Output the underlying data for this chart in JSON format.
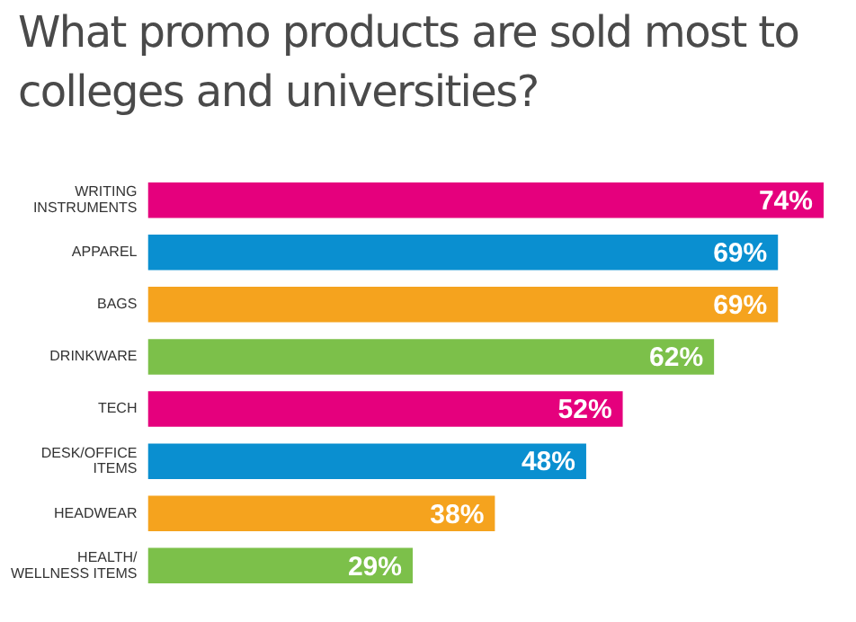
{
  "chart_data": {
    "type": "bar",
    "orientation": "horizontal",
    "title": "What promo products are sold most to colleges and universities?",
    "categories": [
      "WRITING\nINSTRUMENTS",
      "APPAREL",
      "BAGS",
      "DRINKWARE",
      "TECH",
      "DESK/OFFICE\nITEMS",
      "HEADWEAR",
      "HEALTH/\nWELLNESS ITEMS"
    ],
    "values": [
      74,
      69,
      69,
      62,
      52,
      48,
      38,
      29
    ],
    "colors": [
      "#e5007d",
      "#0a8fd0",
      "#f5a31e",
      "#7cc04a",
      "#e5007d",
      "#0a8fd0",
      "#f5a31e",
      "#7cc04a"
    ],
    "value_labels": [
      "74%",
      "69%",
      "69%",
      "62%",
      "52%",
      "48%",
      "38%",
      "29%"
    ],
    "grid": false,
    "legend": false
  }
}
